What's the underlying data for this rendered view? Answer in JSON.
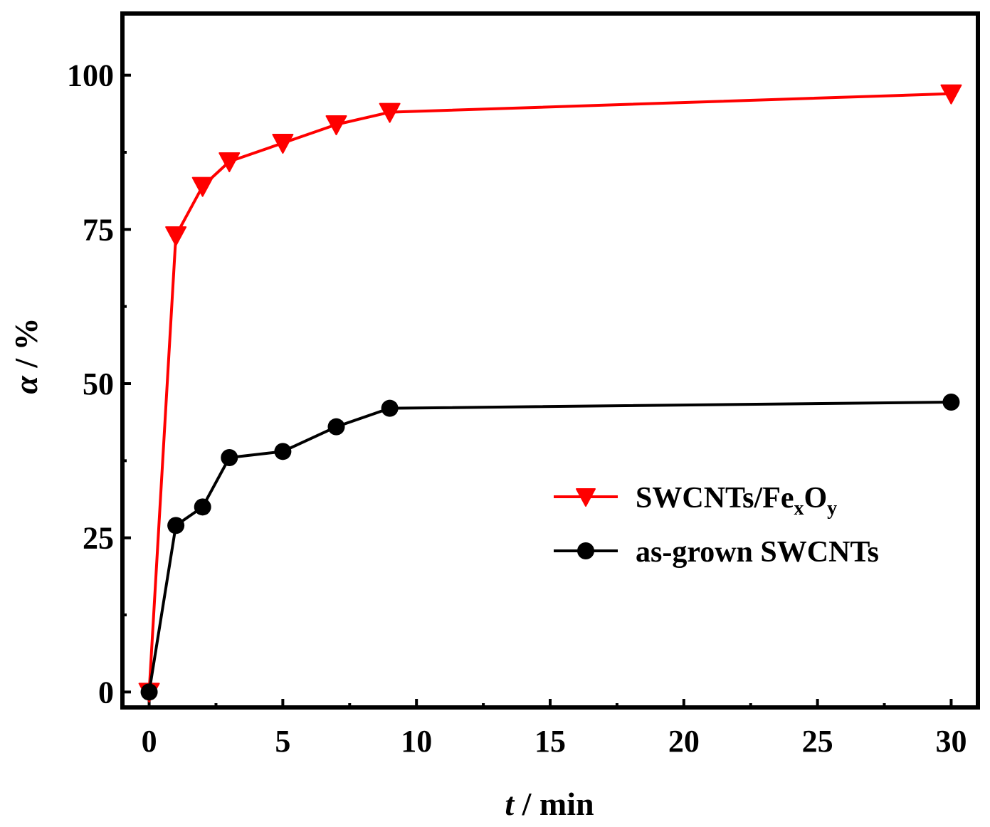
{
  "chart_data": {
    "type": "line",
    "title": "",
    "xlabel": {
      "italic": "t",
      "rest": " / min"
    },
    "ylabel": {
      "italic": "α",
      "rest": " / %"
    },
    "xlim": [
      -1,
      31
    ],
    "ylim": [
      -2.5,
      110
    ],
    "x_axis_break": {
      "from": 10,
      "to": 30
    },
    "x_ticks": [
      "0",
      "5",
      "10",
      "15",
      "20",
      "25",
      "30"
    ],
    "y_ticks": [
      "0",
      "25",
      "50",
      "75",
      "100"
    ],
    "series": [
      {
        "name": "SWCNTs/FexOy",
        "legend": {
          "base": "SWCNTs/Fe",
          "sub1": "x",
          "mid": "O",
          "sub2": "y"
        },
        "color": "#ff0000",
        "marker": "triangle-down",
        "x": [
          0,
          1,
          2,
          3,
          5,
          7,
          9,
          30
        ],
        "y": [
          0,
          74,
          82,
          86,
          89,
          92,
          94,
          97
        ]
      },
      {
        "name": "as-grown SWCNTs",
        "legend": {
          "base": "as-grown SWCNTs"
        },
        "color": "#000000",
        "marker": "circle",
        "x": [
          0,
          1,
          2,
          3,
          5,
          7,
          9,
          30
        ],
        "y": [
          0,
          27,
          30,
          38,
          39,
          43,
          46,
          47
        ]
      }
    ],
    "legend_position": "center-right"
  }
}
